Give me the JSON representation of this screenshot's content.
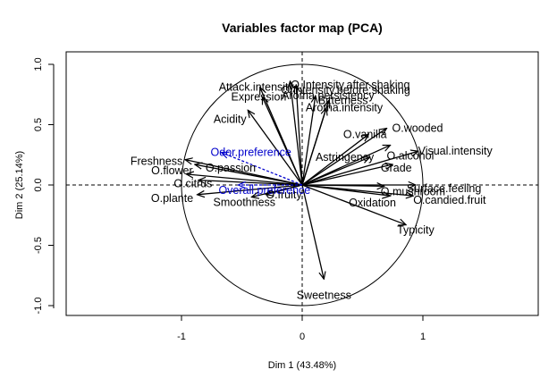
{
  "chart_data": {
    "type": "scatter",
    "title": "Variables factor map (PCA)",
    "xlabel": "Dim 1 (43.48%)",
    "ylabel": "Dim 2 (25.14%)",
    "xlim": [
      -1,
      1
    ],
    "ylim": [
      -1,
      1
    ],
    "x_ticks": [
      "-1",
      "0",
      "1"
    ],
    "y_ticks": [
      "-1.0",
      "-0.5",
      "0.0",
      "0.5",
      "1.0"
    ],
    "correlation_circle_radius": 1,
    "active_color": "#000000",
    "supplementary_color": "#0000cc",
    "active_variables": [
      {
        "name": "O.Intensity.before.shaking",
        "x": -0.1,
        "y": 0.86
      },
      {
        "name": "O.Intensity.after.shaking",
        "x": -0.05,
        "y": 0.83
      },
      {
        "name": "Attack.intensity",
        "x": -0.35,
        "y": 0.81
      },
      {
        "name": "Expression",
        "x": -0.33,
        "y": 0.73
      },
      {
        "name": "Aroma.persistency",
        "x": 0.11,
        "y": 0.74
      },
      {
        "name": "Bitterness",
        "x": 0.22,
        "y": 0.7
      },
      {
        "name": "Aroma.intensity",
        "x": 0.2,
        "y": 0.64
      },
      {
        "name": "Acidity",
        "x": -0.45,
        "y": 0.62
      },
      {
        "name": "O.wooded",
        "x": 0.7,
        "y": 0.47
      },
      {
        "name": "O.vanilla",
        "x": 0.55,
        "y": 0.42
      },
      {
        "name": "O.alcohol",
        "x": 0.73,
        "y": 0.33
      },
      {
        "name": "Astringency",
        "x": 0.56,
        "y": 0.23
      },
      {
        "name": "Visual.intensity",
        "x": 0.96,
        "y": 0.28
      },
      {
        "name": "Grade",
        "x": 0.75,
        "y": 0.17
      },
      {
        "name": "Freshness",
        "x": -0.97,
        "y": 0.21
      },
      {
        "name": "O.passion",
        "x": -0.89,
        "y": 0.17
      },
      {
        "name": "O.flower",
        "x": -0.96,
        "y": 0.09
      },
      {
        "name": "O.citrus",
        "x": -0.86,
        "y": 0.04
      },
      {
        "name": "O.plante",
        "x": -0.87,
        "y": -0.08
      },
      {
        "name": "Smoothness",
        "x": -0.42,
        "y": -0.1
      },
      {
        "name": "O.fruity",
        "x": -0.3,
        "y": -0.08
      },
      {
        "name": "O.mushroom",
        "x": 0.68,
        "y": -0.01
      },
      {
        "name": "Surface.feeling",
        "x": 0.94,
        "y": 0.0
      },
      {
        "name": "O.candied.fruit",
        "x": 0.92,
        "y": -0.09
      },
      {
        "name": "Oxidation",
        "x": 0.73,
        "y": -0.09
      },
      {
        "name": "Typicity",
        "x": 0.86,
        "y": -0.33
      },
      {
        "name": "Sweetness",
        "x": 0.18,
        "y": -0.78
      }
    ],
    "supplementary_variables": [
      {
        "name": "Odor.preference",
        "x": -0.67,
        "y": 0.27
      },
      {
        "name": "Overall.preference",
        "x": -0.53,
        "y": 0.0
      }
    ]
  }
}
